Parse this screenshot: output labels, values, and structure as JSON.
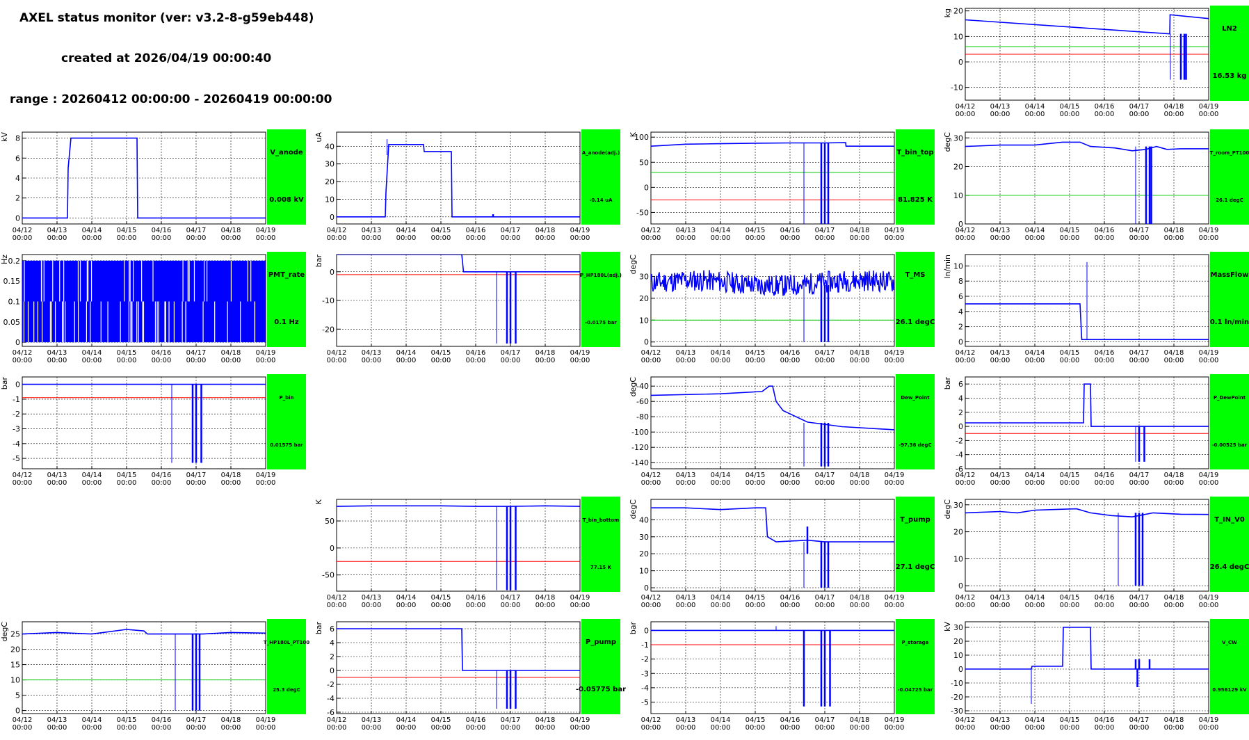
{
  "header": {
    "title": "AXEL status monitor (ver: v3.2-8-g59eb448)",
    "created": "created at 2026/04/19 00:00:40",
    "range": "range : 20260412 00:00:00 - 20260419 00:00:00"
  },
  "time_axis": {
    "tick_labels": [
      "04/12\n00:00",
      "04/13\n00:00",
      "04/14\n00:00",
      "04/15\n00:00",
      "04/16\n00:00",
      "04/17\n00:00",
      "04/18\n00:00",
      "04/19\n00:00"
    ],
    "range_days": [
      0,
      7
    ]
  },
  "colors": {
    "data": "#0000ff",
    "low_threshold": "#ff0000",
    "high_threshold": "#00cc00",
    "value_box": "#00ff00",
    "grid": "#000000"
  },
  "chart_data": [
    {
      "id": "LN2",
      "type": "line",
      "ylabel": "kg",
      "ylim": [
        -15,
        21
      ],
      "yticks": [
        -10,
        0,
        10,
        20
      ],
      "box_label": "LN2",
      "box_value": "16.53 kg",
      "red": 3,
      "green": 6,
      "points": [
        [
          0,
          16.5
        ],
        [
          5.88,
          11
        ],
        [
          5.89,
          18.5
        ],
        [
          7,
          17
        ]
      ],
      "spikes": [
        [
          5.9,
          11,
          -7
        ],
        [
          6.2,
          11,
          -7
        ],
        [
          6.3,
          11,
          -7
        ],
        [
          6.35,
          11,
          -7
        ]
      ]
    },
    {
      "id": "V_anode",
      "type": "line",
      "ylabel": "kV",
      "ylim": [
        -0.6,
        8.6
      ],
      "yticks": [
        0,
        2,
        4,
        6,
        8
      ],
      "box_label": "V_anode",
      "box_value": "0.008 kV",
      "points": [
        [
          0,
          0
        ],
        [
          1.3,
          0
        ],
        [
          1.32,
          5
        ],
        [
          1.4,
          8
        ],
        [
          3.3,
          8
        ],
        [
          3.32,
          0
        ],
        [
          7,
          0
        ]
      ],
      "spikes": []
    },
    {
      "id": "A_anode",
      "type": "line",
      "ylabel": "uA",
      "ylim": [
        -4,
        48
      ],
      "yticks": [
        0,
        10,
        20,
        30,
        40
      ],
      "box_label": "A_anode(adj.)",
      "box_value": "-0.14 uA",
      "points": [
        [
          0,
          0
        ],
        [
          1.4,
          0
        ],
        [
          1.42,
          14
        ],
        [
          1.5,
          41
        ],
        [
          2.5,
          41
        ],
        [
          2.52,
          37
        ],
        [
          3.3,
          37
        ],
        [
          3.32,
          0
        ],
        [
          7,
          0
        ]
      ],
      "spikes": [
        [
          1.45,
          35,
          44
        ],
        [
          4.5,
          0,
          1.5
        ]
      ]
    },
    {
      "id": "T_bin_top",
      "type": "line",
      "ylabel": "K",
      "ylim": [
        -73,
        110
      ],
      "yticks": [
        -50,
        0,
        50,
        100
      ],
      "box_label": "T_bin_top",
      "box_value": "81.825 K",
      "red": -25,
      "green": 30,
      "points": [
        [
          0,
          82
        ],
        [
          1,
          86
        ],
        [
          2,
          87
        ],
        [
          3,
          88
        ],
        [
          4,
          88.5
        ],
        [
          5,
          88.5
        ],
        [
          5.6,
          89
        ],
        [
          5.61,
          82
        ],
        [
          7,
          82
        ]
      ],
      "spikes": [
        [
          4.4,
          88,
          -73
        ],
        [
          4.9,
          88,
          -73
        ],
        [
          5,
          88,
          -73
        ],
        [
          5.1,
          88,
          -73
        ]
      ]
    },
    {
      "id": "T_room_PT100",
      "type": "line",
      "ylabel": "degC",
      "ylim": [
        0,
        32
      ],
      "yticks": [
        0,
        10,
        20,
        30
      ],
      "box_label": "T_room_PT100",
      "box_value": "26.1 degC",
      "green": 10,
      "points": [
        [
          0,
          27
        ],
        [
          1,
          27.5
        ],
        [
          2,
          27.5
        ],
        [
          2.8,
          28.5
        ],
        [
          3.3,
          28.5
        ],
        [
          3.6,
          27
        ],
        [
          4.3,
          26.5
        ],
        [
          4.8,
          25.5
        ],
        [
          5.2,
          26
        ],
        [
          5.5,
          27
        ],
        [
          5.8,
          26
        ],
        [
          6.2,
          26.2
        ],
        [
          7,
          26.2
        ]
      ],
      "spikes": [
        [
          4.9,
          27,
          0
        ],
        [
          5.2,
          27,
          0
        ],
        [
          5.3,
          27,
          0
        ],
        [
          5.35,
          27,
          0
        ]
      ]
    },
    {
      "id": "PMT_rate",
      "type": "line",
      "ylabel": "Hz",
      "ylim": [
        -0.01,
        0.215
      ],
      "yticks": [
        0,
        0.05,
        0.1,
        0.15,
        0.2
      ],
      "box_label": "PMT_rate",
      "box_value": "0.1 Hz",
      "noise_band": [
        0,
        0.2
      ],
      "points": [
        [
          0,
          0.1
        ],
        [
          7,
          0.1
        ]
      ],
      "spikes": []
    },
    {
      "id": "P_HP180L",
      "type": "line",
      "ylabel": "bar",
      "ylim": [
        -26,
        6
      ],
      "yticks": [
        -20,
        -10,
        0
      ],
      "box_label": "P_HP180L(adj.)",
      "box_value": "-0.0175 bar",
      "red": -1,
      "points": [
        [
          0,
          6
        ],
        [
          3.6,
          6
        ],
        [
          3.65,
          0
        ],
        [
          7,
          0
        ]
      ],
      "spikes": [
        [
          4.6,
          0,
          -25
        ],
        [
          4.9,
          0,
          -25
        ],
        [
          5,
          0,
          -25
        ],
        [
          5.15,
          0,
          -25
        ]
      ]
    },
    {
      "id": "T_MS",
      "type": "line",
      "ylabel": "degC",
      "ylim": [
        -2,
        40
      ],
      "yticks": [
        0,
        10,
        20,
        30
      ],
      "box_label": "T_MS",
      "box_value": "26.1 degC",
      "green": 10,
      "noise_band": [
        22,
        32
      ],
      "points": [
        [
          0,
          26
        ],
        [
          7,
          26
        ]
      ],
      "spikes": [
        [
          4.4,
          26,
          0
        ],
        [
          4.9,
          26,
          0
        ],
        [
          5,
          26,
          0
        ],
        [
          5.1,
          26,
          0
        ]
      ]
    },
    {
      "id": "MassFlow",
      "type": "line",
      "ylabel": "ln/min",
      "ylim": [
        -0.6,
        11.5
      ],
      "yticks": [
        0,
        2,
        4,
        6,
        8,
        10
      ],
      "box_label": "MassFlow",
      "box_value": "0.1 ln/min",
      "points": [
        [
          0,
          5
        ],
        [
          3.3,
          5
        ],
        [
          3.35,
          0.3
        ],
        [
          7,
          0.3
        ]
      ],
      "spikes": [
        [
          3.5,
          0.3,
          10.5
        ]
      ]
    },
    {
      "id": "P_bin",
      "type": "line",
      "ylabel": "bar",
      "ylim": [
        -5.7,
        0.5
      ],
      "yticks": [
        -5,
        -4,
        -3,
        -2,
        -1,
        0
      ],
      "box_label": "P_bin",
      "box_value": "0.01575 bar",
      "red": -0.9,
      "points": [
        [
          0,
          0
        ],
        [
          7,
          0
        ]
      ],
      "spikes": [
        [
          4.3,
          0,
          -5.3
        ],
        [
          4.9,
          0,
          -5.3
        ],
        [
          5,
          0,
          -5.3
        ],
        [
          5.15,
          0,
          -5.3
        ]
      ]
    },
    {
      "id": "Dew_Point",
      "type": "line",
      "ylabel": "degC",
      "ylim": [
        -148,
        -28
      ],
      "yticks": [
        -140,
        -120,
        -100,
        -80,
        -60,
        -40
      ],
      "box_label": "Dew_Point",
      "box_value": "-97.36 degC",
      "points": [
        [
          0,
          -52
        ],
        [
          2,
          -50
        ],
        [
          3.2,
          -47
        ],
        [
          3.4,
          -40
        ],
        [
          3.5,
          -40
        ],
        [
          3.6,
          -60
        ],
        [
          3.8,
          -72
        ],
        [
          4.5,
          -87
        ],
        [
          5.5,
          -93
        ],
        [
          7,
          -97
        ]
      ],
      "spikes": [
        [
          4.4,
          -88,
          -145
        ],
        [
          4.9,
          -88,
          -145
        ],
        [
          5,
          -88,
          -145
        ],
        [
          5.1,
          -88,
          -145
        ]
      ]
    },
    {
      "id": "P_DewPoint",
      "type": "line",
      "ylabel": "bar",
      "ylim": [
        -6,
        7
      ],
      "yticks": [
        -6,
        -4,
        -2,
        0,
        2,
        4,
        6
      ],
      "box_label": "P_DewPoint",
      "box_value": "-0.00525 bar",
      "red": -1,
      "points": [
        [
          0,
          0.5
        ],
        [
          3.4,
          0.5
        ],
        [
          3.42,
          6
        ],
        [
          3.6,
          6
        ],
        [
          3.62,
          0
        ],
        [
          7,
          0
        ]
      ],
      "spikes": [
        [
          4.9,
          0,
          -5
        ],
        [
          5,
          0,
          -5
        ],
        [
          5.15,
          0,
          -5
        ]
      ]
    },
    {
      "id": "T_bin_bottom",
      "type": "line",
      "ylabel": "K",
      "ylim": [
        -80,
        90
      ],
      "yticks": [
        -50,
        0,
        50
      ],
      "box_label": "T_bin_bottom",
      "box_value": "77.15 K",
      "red": -25,
      "points": [
        [
          0,
          77
        ],
        [
          1,
          78
        ],
        [
          2,
          78
        ],
        [
          3,
          78
        ],
        [
          4,
          77
        ],
        [
          5,
          77
        ],
        [
          6,
          78
        ],
        [
          7,
          77
        ]
      ],
      "spikes": [
        [
          4.6,
          77,
          -78
        ],
        [
          4.9,
          77,
          -78
        ],
        [
          5,
          77,
          -78
        ],
        [
          5.15,
          77,
          -78
        ]
      ]
    },
    {
      "id": "T_pump",
      "type": "line",
      "ylabel": "degC",
      "ylim": [
        -2,
        52
      ],
      "yticks": [
        0,
        10,
        20,
        30,
        40
      ],
      "box_label": "T_pump",
      "box_value": "27.1 degC",
      "points": [
        [
          0,
          47
        ],
        [
          1,
          47
        ],
        [
          2,
          46
        ],
        [
          3,
          47
        ],
        [
          3.3,
          47
        ],
        [
          3.35,
          30
        ],
        [
          3.6,
          27
        ],
        [
          4.5,
          28
        ],
        [
          5,
          27
        ],
        [
          6,
          27
        ],
        [
          7,
          27
        ]
      ],
      "spikes": [
        [
          4.4,
          27,
          0
        ],
        [
          4.5,
          20,
          36
        ],
        [
          4.9,
          27,
          0
        ],
        [
          5,
          27,
          0
        ],
        [
          5.1,
          27,
          0
        ]
      ]
    },
    {
      "id": "T_IN_V0",
      "type": "line",
      "ylabel": "degC",
      "ylim": [
        -2,
        32
      ],
      "yticks": [
        0,
        10,
        20,
        30
      ],
      "box_label": "T_IN_V0",
      "box_value": "26.4 degC",
      "points": [
        [
          0,
          27
        ],
        [
          1,
          27.5
        ],
        [
          1.5,
          27
        ],
        [
          2,
          28
        ],
        [
          3.2,
          28.5
        ],
        [
          3.6,
          27
        ],
        [
          4.2,
          26
        ],
        [
          4.8,
          25.5
        ],
        [
          5.4,
          27
        ],
        [
          6.2,
          26.5
        ],
        [
          7,
          26.4
        ]
      ],
      "spikes": [
        [
          4.4,
          27,
          0
        ],
        [
          4.9,
          27,
          0
        ],
        [
          5,
          27,
          0
        ],
        [
          5.1,
          27,
          0
        ]
      ]
    },
    {
      "id": "T_HP180L_PT100",
      "type": "line",
      "ylabel": "degC",
      "ylim": [
        -1,
        29
      ],
      "yticks": [
        0,
        5,
        10,
        15,
        20,
        25
      ],
      "box_label": "T_HP180L_PT100",
      "box_value": "25.3 degC",
      "green": 10,
      "points": [
        [
          0,
          25
        ],
        [
          1,
          25.5
        ],
        [
          2,
          25
        ],
        [
          3,
          26.5
        ],
        [
          3.5,
          26
        ],
        [
          3.6,
          25
        ],
        [
          4.5,
          25
        ],
        [
          5.2,
          25
        ],
        [
          6,
          25.5
        ],
        [
          7,
          25.3
        ]
      ],
      "spikes": [
        [
          4.4,
          25,
          0
        ],
        [
          4.9,
          25,
          0
        ],
        [
          5,
          25,
          0
        ],
        [
          5.1,
          25,
          0
        ]
      ]
    },
    {
      "id": "P_pump",
      "type": "line",
      "ylabel": "bar",
      "ylim": [
        -6.2,
        7
      ],
      "yticks": [
        -6,
        -4,
        -2,
        0,
        2,
        4,
        6
      ],
      "box_label": "P_pump",
      "box_value": "-0.05775 bar",
      "red": -1,
      "points": [
        [
          0,
          6
        ],
        [
          3.6,
          6
        ],
        [
          3.62,
          0
        ],
        [
          7,
          0
        ]
      ],
      "spikes": [
        [
          4.6,
          0,
          -5.5
        ],
        [
          4.9,
          0,
          -5.5
        ],
        [
          5,
          0,
          -5.5
        ],
        [
          5.15,
          0,
          -5.5
        ]
      ]
    },
    {
      "id": "P_storage",
      "type": "line",
      "ylabel": "bar",
      "ylim": [
        -5.8,
        0.6
      ],
      "yticks": [
        -5,
        -4,
        -3,
        -2,
        -1,
        0
      ],
      "box_label": "P_storage",
      "box_value": "-0.04725 bar",
      "red": -1,
      "points": [
        [
          0,
          0
        ],
        [
          7,
          0
        ]
      ],
      "spikes": [
        [
          3.6,
          0,
          0.3
        ],
        [
          4.4,
          0,
          -5.3
        ],
        [
          4.9,
          0,
          -5.3
        ],
        [
          5,
          0,
          -5.3
        ],
        [
          5.15,
          0,
          -5.3
        ]
      ]
    },
    {
      "id": "V_CW",
      "type": "line",
      "ylabel": "kV",
      "ylim": [
        -32,
        34
      ],
      "yticks": [
        -30,
        -20,
        -10,
        0,
        10,
        20,
        30
      ],
      "box_label": "V_CW",
      "box_value": "0.956129 kV",
      "points": [
        [
          0,
          0
        ],
        [
          1.9,
          0
        ],
        [
          1.92,
          2
        ],
        [
          2.8,
          2
        ],
        [
          2.82,
          30
        ],
        [
          3.6,
          30
        ],
        [
          3.62,
          0
        ],
        [
          7,
          0
        ]
      ],
      "spikes": [
        [
          1.9,
          0,
          -25
        ],
        [
          4.9,
          0,
          7
        ],
        [
          5,
          0,
          7
        ],
        [
          4.95,
          0,
          -13
        ],
        [
          5.3,
          0,
          7
        ]
      ]
    }
  ]
}
